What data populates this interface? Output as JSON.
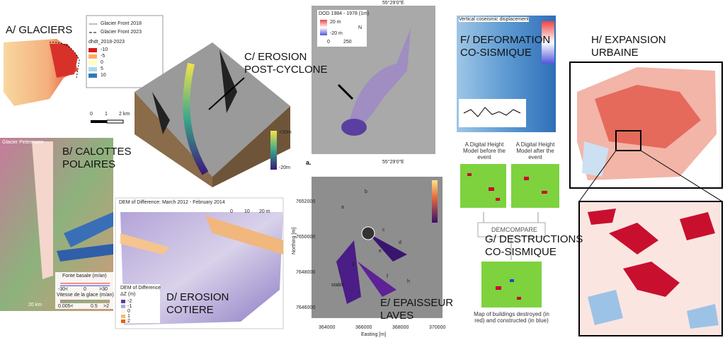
{
  "panels": {
    "a": {
      "label": "A/ GLACIERS",
      "legend": {
        "front_2018": "Glacier Front 2018",
        "front_2023": "Glacier Front 2023",
        "title": "dhdt_2018-2023",
        "classes": [
          "-10",
          "-5",
          "0",
          "5",
          "10"
        ]
      },
      "scale": [
        "0",
        "1",
        "2 km"
      ]
    },
    "b": {
      "label": [
        "B/ CALOTTES",
        "POLAIRES"
      ],
      "name": "Glacier Petermann",
      "melt_title": "Fonte basale (m/an)",
      "melt_ticks": [
        "-30<",
        "0",
        ">30"
      ],
      "speed_title": "Vitesse de la glace (m/an)",
      "speed_ticks": [
        "0.005<",
        "0.5",
        ">2"
      ],
      "scale": "20 km"
    },
    "c": {
      "label": [
        "C/ EROSION",
        "POST-CYCLONE"
      ],
      "colorbar": [
        "+20m",
        "-20m"
      ]
    },
    "dod": {
      "title": "DOD 1984 - 1978 (1m)",
      "legend": [
        "20 m",
        "-20 m"
      ],
      "scale": [
        "0",
        "250"
      ],
      "north": "N",
      "coord_top": "55°29'0\"E",
      "coord_bottom": "55°29'0\"E",
      "panel": "a."
    },
    "d": {
      "label": [
        "D/ EROSION",
        "COTIERE"
      ],
      "title": "DEM of Difference: March 2012 - February 2014",
      "scale": [
        "0",
        "10",
        "20 m"
      ],
      "legend_title": "DEM of Difference",
      "legend_unit": "ΔZ (m)",
      "legend_classes": [
        "-2",
        "-1",
        "0",
        "1",
        "2"
      ]
    },
    "e": {
      "label": [
        "E/ EPAISSEUR",
        "LAVES"
      ],
      "y_title": "Northing [m]",
      "x_title": "Easting [m]",
      "xticks": [
        "364000",
        "366000",
        "368000",
        "370000"
      ],
      "yticks": [
        "7652000",
        "7650000",
        "7648000",
        "7646000"
      ],
      "flows": [
        "a",
        "b",
        "c",
        "d",
        "e",
        "f",
        "g",
        "h",
        "i"
      ],
      "stable": "stable"
    },
    "f": {
      "label": [
        "F/ DEFORMATION",
        "CO-SISMIQUE"
      ],
      "title": "Vertical coseismic displacement"
    },
    "g": {
      "label": [
        "G/ DESTRUCTIONS",
        "CO-SISMIQUE"
      ],
      "before": "A Digital Height Model before the event",
      "after": "A Digital Height Model after the event",
      "tool": "DEMCOMPARE",
      "result": "Map of buildings destroyed (in red) and constructed (in blue)"
    },
    "h": {
      "label": [
        "H/ EXPANSION",
        "URBAINE"
      ]
    }
  }
}
